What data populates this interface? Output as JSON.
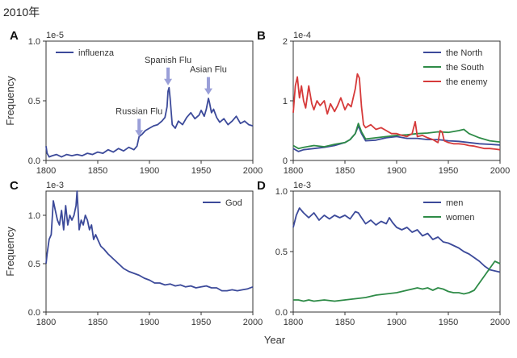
{
  "header": {
    "title": "2010年"
  },
  "figure": {
    "xlabel_shared": "Year"
  },
  "colors": {
    "blue": "#3c4a9a",
    "green": "#2e8b47",
    "red": "#d63a3a",
    "arrow": "#9a9fd8",
    "axis": "#333333"
  },
  "chart_data": [
    {
      "panel": "A",
      "type": "line",
      "xlim": [
        1800,
        2000
      ],
      "ylim": [
        0,
        1.0
      ],
      "scale_label": "1e-5",
      "xticks": [
        "1800",
        "1850",
        "1900",
        "1950",
        "2000"
      ],
      "yticks": [
        "0.0",
        "0.5",
        "1.0"
      ],
      "ylabel": "Frequency",
      "legend_position": "top-left",
      "series": [
        {
          "name": "influenza",
          "color": "#3c4a9a",
          "x": [
            1800,
            1801,
            1803,
            1806,
            1810,
            1815,
            1820,
            1825,
            1830,
            1835,
            1840,
            1845,
            1850,
            1855,
            1860,
            1865,
            1870,
            1875,
            1880,
            1885,
            1888,
            1890,
            1893,
            1896,
            1900,
            1904,
            1908,
            1912,
            1915,
            1917,
            1918,
            1919,
            1920,
            1922,
            1925,
            1928,
            1932,
            1936,
            1940,
            1944,
            1948,
            1950,
            1953,
            1955,
            1957,
            1958,
            1960,
            1962,
            1965,
            1968,
            1972,
            1976,
            1980,
            1984,
            1988,
            1992,
            1996,
            2000
          ],
          "y": [
            0.12,
            0.06,
            0.03,
            0.04,
            0.05,
            0.03,
            0.05,
            0.04,
            0.05,
            0.04,
            0.06,
            0.05,
            0.07,
            0.06,
            0.09,
            0.07,
            0.1,
            0.08,
            0.11,
            0.09,
            0.12,
            0.2,
            0.22,
            0.25,
            0.27,
            0.29,
            0.3,
            0.33,
            0.36,
            0.45,
            0.58,
            0.61,
            0.52,
            0.3,
            0.27,
            0.33,
            0.3,
            0.36,
            0.4,
            0.35,
            0.38,
            0.42,
            0.37,
            0.43,
            0.52,
            0.49,
            0.4,
            0.43,
            0.36,
            0.32,
            0.35,
            0.3,
            0.33,
            0.37,
            0.31,
            0.33,
            0.3,
            0.29
          ]
        }
      ],
      "annotations": [
        {
          "text": "Russian Flu",
          "x": 1890,
          "arrow_y": 0.2
        },
        {
          "text": "Spanish Flu",
          "x": 1918,
          "arrow_y": 0.63
        },
        {
          "text": "Asian Flu",
          "x": 1957,
          "arrow_y": 0.55
        }
      ]
    },
    {
      "panel": "B",
      "type": "line",
      "xlim": [
        1800,
        2000
      ],
      "ylim": [
        0,
        2
      ],
      "scale_label": "1e-4",
      "xticks": [
        "1800",
        "1850",
        "1900",
        "1950",
        "2000"
      ],
      "yticks": [
        "0",
        "1",
        "2"
      ],
      "legend_position": "top-right",
      "series": [
        {
          "name": "the North",
          "color": "#3c4a9a",
          "x": [
            1800,
            1805,
            1810,
            1820,
            1830,
            1840,
            1850,
            1855,
            1860,
            1863,
            1866,
            1870,
            1880,
            1890,
            1900,
            1910,
            1920,
            1930,
            1940,
            1950,
            1960,
            1970,
            1980,
            1990,
            2000
          ],
          "y": [
            0.2,
            0.15,
            0.18,
            0.2,
            0.22,
            0.25,
            0.3,
            0.35,
            0.45,
            0.58,
            0.45,
            0.33,
            0.34,
            0.38,
            0.4,
            0.37,
            0.37,
            0.35,
            0.35,
            0.33,
            0.32,
            0.3,
            0.28,
            0.27,
            0.26
          ]
        },
        {
          "name": "the South",
          "color": "#2e8b47",
          "x": [
            1800,
            1805,
            1810,
            1820,
            1830,
            1840,
            1850,
            1855,
            1860,
            1863,
            1866,
            1870,
            1880,
            1890,
            1900,
            1910,
            1920,
            1930,
            1940,
            1950,
            1960,
            1965,
            1970,
            1980,
            1990,
            2000
          ],
          "y": [
            0.25,
            0.2,
            0.22,
            0.25,
            0.23,
            0.27,
            0.3,
            0.35,
            0.45,
            0.62,
            0.48,
            0.36,
            0.38,
            0.4,
            0.42,
            0.43,
            0.45,
            0.46,
            0.48,
            0.47,
            0.5,
            0.52,
            0.45,
            0.38,
            0.33,
            0.31
          ]
        },
        {
          "name": "the enemy",
          "color": "#d63a3a",
          "x": [
            1800,
            1802,
            1804,
            1806,
            1808,
            1810,
            1812,
            1815,
            1818,
            1820,
            1823,
            1826,
            1830,
            1833,
            1836,
            1840,
            1843,
            1846,
            1850,
            1853,
            1856,
            1860,
            1862,
            1864,
            1866,
            1868,
            1870,
            1875,
            1880,
            1885,
            1890,
            1895,
            1900,
            1905,
            1910,
            1915,
            1918,
            1920,
            1925,
            1930,
            1935,
            1940,
            1942,
            1944,
            1946,
            1950,
            1955,
            1960,
            1965,
            1970,
            1975,
            1980,
            1985,
            1990,
            1995,
            2000
          ],
          "y": [
            0.8,
            1.25,
            1.4,
            1.05,
            1.25,
            1.0,
            0.88,
            1.25,
            0.95,
            0.85,
            1.0,
            0.92,
            1.0,
            0.78,
            0.95,
            0.82,
            0.92,
            1.05,
            0.85,
            0.95,
            0.9,
            1.2,
            1.45,
            1.38,
            0.9,
            0.6,
            0.55,
            0.6,
            0.52,
            0.55,
            0.5,
            0.45,
            0.45,
            0.42,
            0.4,
            0.45,
            0.65,
            0.4,
            0.42,
            0.38,
            0.35,
            0.3,
            0.5,
            0.48,
            0.33,
            0.3,
            0.28,
            0.28,
            0.27,
            0.25,
            0.24,
            0.22,
            0.2,
            0.2,
            0.19,
            0.18
          ]
        }
      ]
    },
    {
      "panel": "C",
      "type": "line",
      "xlim": [
        1800,
        2000
      ],
      "ylim": [
        0,
        1.25
      ],
      "scale_label": "1e-3",
      "xticks": [
        "1800",
        "1850",
        "1900",
        "1950",
        "2000"
      ],
      "yticks": [
        "0.0",
        "0.5",
        "1.0"
      ],
      "ylabel": "Frequency",
      "legend_position": "top-right",
      "series": [
        {
          "name": "God",
          "color": "#3c4a9a",
          "x": [
            1800,
            1801,
            1803,
            1805,
            1807,
            1809,
            1811,
            1813,
            1815,
            1817,
            1819,
            1821,
            1823,
            1825,
            1827,
            1829,
            1830,
            1832,
            1834,
            1836,
            1838,
            1840,
            1842,
            1844,
            1846,
            1848,
            1850,
            1853,
            1856,
            1860,
            1865,
            1870,
            1875,
            1880,
            1885,
            1890,
            1895,
            1900,
            1905,
            1910,
            1915,
            1920,
            1925,
            1930,
            1935,
            1940,
            1945,
            1950,
            1955,
            1960,
            1965,
            1970,
            1975,
            1980,
            1985,
            1990,
            1995,
            2000
          ],
          "y": [
            0.5,
            0.6,
            0.75,
            0.8,
            1.15,
            1.05,
            0.95,
            0.9,
            1.05,
            0.85,
            1.1,
            0.9,
            1.0,
            0.95,
            1.0,
            1.1,
            1.25,
            0.85,
            0.95,
            0.9,
            1.0,
            0.95,
            0.85,
            0.9,
            0.75,
            0.8,
            0.75,
            0.68,
            0.65,
            0.6,
            0.55,
            0.5,
            0.45,
            0.42,
            0.4,
            0.38,
            0.35,
            0.33,
            0.3,
            0.3,
            0.28,
            0.29,
            0.27,
            0.28,
            0.26,
            0.27,
            0.25,
            0.26,
            0.27,
            0.25,
            0.25,
            0.22,
            0.22,
            0.23,
            0.22,
            0.23,
            0.24,
            0.26
          ]
        }
      ]
    },
    {
      "panel": "D",
      "type": "line",
      "xlim": [
        1800,
        2000
      ],
      "ylim": [
        0,
        1.0
      ],
      "scale_label": "1e-3",
      "xticks": [
        "1800",
        "1850",
        "1900",
        "1950",
        "2000"
      ],
      "yticks": [
        "0.0",
        "0.5",
        "1.0"
      ],
      "legend_position": "top-right",
      "series": [
        {
          "name": "men",
          "color": "#3c4a9a",
          "x": [
            1800,
            1803,
            1806,
            1810,
            1815,
            1820,
            1825,
            1830,
            1835,
            1840,
            1845,
            1850,
            1855,
            1860,
            1863,
            1866,
            1870,
            1875,
            1880,
            1885,
            1890,
            1893,
            1896,
            1900,
            1905,
            1910,
            1915,
            1920,
            1925,
            1930,
            1935,
            1940,
            1945,
            1950,
            1955,
            1960,
            1965,
            1970,
            1975,
            1980,
            1985,
            1990,
            1995,
            2000
          ],
          "y": [
            0.7,
            0.8,
            0.86,
            0.82,
            0.78,
            0.82,
            0.76,
            0.8,
            0.77,
            0.8,
            0.78,
            0.8,
            0.77,
            0.83,
            0.82,
            0.78,
            0.73,
            0.76,
            0.72,
            0.75,
            0.73,
            0.78,
            0.74,
            0.7,
            0.68,
            0.7,
            0.66,
            0.68,
            0.63,
            0.65,
            0.6,
            0.62,
            0.58,
            0.57,
            0.55,
            0.53,
            0.5,
            0.48,
            0.45,
            0.42,
            0.38,
            0.35,
            0.34,
            0.33
          ]
        },
        {
          "name": "women",
          "color": "#2e8b47",
          "x": [
            1800,
            1805,
            1810,
            1815,
            1820,
            1830,
            1840,
            1850,
            1860,
            1870,
            1880,
            1890,
            1900,
            1910,
            1920,
            1925,
            1930,
            1935,
            1940,
            1945,
            1950,
            1955,
            1960,
            1965,
            1970,
            1975,
            1980,
            1985,
            1990,
            1995,
            2000
          ],
          "y": [
            0.1,
            0.1,
            0.09,
            0.1,
            0.09,
            0.1,
            0.09,
            0.1,
            0.11,
            0.12,
            0.14,
            0.15,
            0.16,
            0.18,
            0.2,
            0.19,
            0.2,
            0.18,
            0.2,
            0.19,
            0.17,
            0.16,
            0.16,
            0.15,
            0.16,
            0.18,
            0.24,
            0.3,
            0.36,
            0.42,
            0.4
          ]
        }
      ]
    }
  ]
}
